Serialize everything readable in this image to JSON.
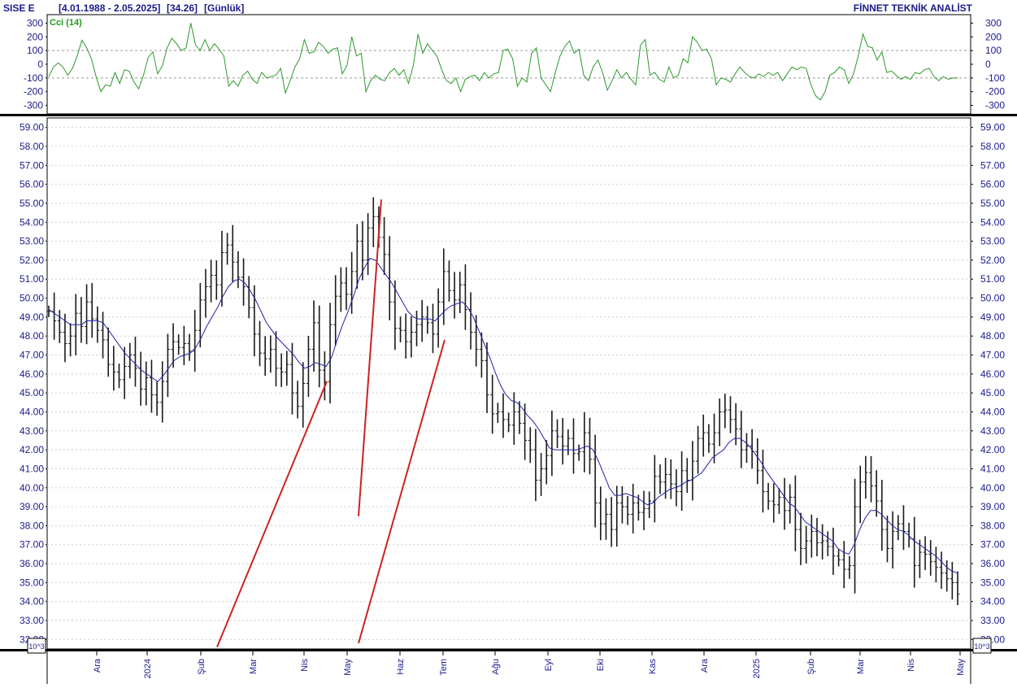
{
  "header": {
    "symbol": "SISE  E",
    "range": "[4.01.1988 - 2.05.2025]",
    "last": "[34.26]",
    "period": "[Günlük]",
    "brand": "FİNNET TEKNİK ANALİST"
  },
  "chart_data": [
    {
      "type": "line",
      "panel": "indicator",
      "indicator_label": "Cci (14)",
      "yticks": [
        "300",
        "200",
        "100",
        "0",
        "-100",
        "-200",
        "-300"
      ],
      "ylim": [
        -350,
        350
      ],
      "reference_lines": [
        100,
        -100
      ],
      "series": [
        {
          "color": "#2a9a2a",
          "values": [
            -90,
            -20,
            10,
            -20,
            -80,
            -30,
            60,
            175,
            120,
            40,
            -90,
            -200,
            -150,
            -160,
            -60,
            -140,
            -40,
            -50,
            -130,
            -180,
            -80,
            50,
            90,
            -70,
            -10,
            120,
            190,
            150,
            100,
            120,
            300,
            140,
            100,
            180,
            100,
            150,
            110,
            60,
            -160,
            -120,
            -160,
            -80,
            -50,
            -110,
            -140,
            -60,
            -100,
            -90,
            -80,
            -30,
            -210,
            -120,
            -20,
            40,
            180,
            80,
            90,
            160,
            130,
            80,
            110,
            120,
            -70,
            -10,
            200,
            60,
            80,
            -200,
            -120,
            -80,
            -110,
            -120,
            -60,
            -30,
            -80,
            -40,
            -140,
            -10,
            220,
            80,
            150,
            100,
            60,
            -40,
            -120,
            -140,
            -100,
            -200,
            -110,
            -90,
            -80,
            -120,
            -60,
            -100,
            -70,
            -60,
            100,
            110,
            40,
            -160,
            -100,
            -130,
            80,
            120,
            -100,
            -150,
            -200,
            -60,
            60,
            130,
            170,
            80,
            110,
            -80,
            -120,
            -20,
            30,
            -60,
            -190,
            -120,
            -40,
            -100,
            -60,
            -110,
            -150,
            140,
            180,
            -80,
            -60,
            -110,
            -130,
            -20,
            -100,
            -80,
            40,
            10,
            200,
            160,
            100,
            110,
            40,
            -150,
            -100,
            -110,
            -130,
            -70,
            -20,
            -60,
            -90,
            -100,
            -70,
            -90,
            -60,
            -80,
            -60,
            -120,
            -70,
            -20,
            -40,
            -20,
            -30,
            -150,
            -230,
            -260,
            -200,
            -80,
            -60,
            -20,
            -40,
            -140,
            -70,
            60,
            220,
            130,
            120,
            30,
            90,
            -60,
            -50,
            -80,
            -110,
            -90,
            -110,
            -60,
            -70,
            -40,
            -30,
            -90,
            -120,
            -90,
            -110,
            -100,
            -100
          ]
        }
      ]
    },
    {
      "type": "line",
      "panel": "price",
      "yticks": [
        "59.00",
        "58.00",
        "57.00",
        "56.00",
        "55.00",
        "54.00",
        "53.00",
        "52.00",
        "51.00",
        "50.00",
        "49.00",
        "48.00",
        "47.00",
        "46.00",
        "45.00",
        "44.00",
        "43.00",
        "42.00",
        "41.00",
        "40.00",
        "39.00",
        "38.00",
        "37.00",
        "36.00",
        "35.00",
        "34.00",
        "33.00",
        "32.00"
      ],
      "ylim": [
        31.5,
        59.5
      ],
      "x_categories": [
        "Ara",
        "2024",
        "Şub",
        "Mar",
        "Nis",
        "May",
        "Haz",
        "Tem",
        "Ağu",
        "Eyl",
        "Eki",
        "Kas",
        "Ara",
        "2025",
        "Şub",
        "Mar",
        "Nis",
        "May"
      ],
      "ohlc_series": [
        49.3,
        48.8,
        48.2,
        47.6,
        48.0,
        49.2,
        48.5,
        49.8,
        48.9,
        48.3,
        47.8,
        46.5,
        46.1,
        45.7,
        46.4,
        47.0,
        46.3,
        45.2,
        45.8,
        44.9,
        44.5,
        45.6,
        47.3,
        47.7,
        47.4,
        47.6,
        47.2,
        48.3,
        49.9,
        50.6,
        51.2,
        50.7,
        52.4,
        52.8,
        51.9,
        51.1,
        50.6,
        49.5,
        48.1,
        47.1,
        46.8,
        47.3,
        46.3,
        46.1,
        46.5,
        45.0,
        44.3,
        45.5,
        47.3,
        48.7,
        46.2,
        45.6,
        48.6,
        50.1,
        50.8,
        50.2,
        51.4,
        53.0,
        52.0,
        53.7,
        54.3,
        53.2,
        52.3,
        49.8,
        48.4,
        48.3,
        47.7,
        48.2,
        48.6,
        49.0,
        48.7,
        48.1,
        49.8,
        51.4,
        50.4,
        49.9,
        50.7,
        49.4,
        48.2,
        47.3,
        46.7,
        44.9,
        43.9,
        44.0,
        43.6,
        43.3,
        44.0,
        43.4,
        42.5,
        42.0,
        40.4,
        41.0,
        41.7,
        43.0,
        42.7,
        42.2,
        42.6,
        41.8,
        41.9,
        42.9,
        41.5,
        39.2,
        38.1,
        38.6,
        37.8,
        39.2,
        39.0,
        38.6,
        39.2,
        38.7,
        38.9,
        39.3,
        40.6,
        40.3,
        40.7,
        40.2,
        39.8,
        40.9,
        40.4,
        41.4,
        42.6,
        42.9,
        42.3,
        42.9,
        44.0,
        44.1,
        43.6,
        43.1,
        42.0,
        42.2,
        41.9,
        40.9,
        39.8,
        39.3,
        39.1,
        39.5,
        38.8,
        39.5,
        37.8,
        36.8,
        37.2,
        37.7,
        37.1,
        37.2,
        36.9,
        36.4,
        36.2,
        35.7,
        35.9,
        39.0,
        40.3,
        40.8,
        40.1,
        39.3,
        37.8,
        36.8,
        37.7,
        38.1,
        37.7,
        37.3,
        35.9,
        36.6,
        36.5,
        36.1,
        35.8,
        35.5,
        35.2,
        35.0,
        34.4
      ],
      "ma_series": [
        49.4,
        49.2,
        49.0,
        48.8,
        48.6,
        48.6,
        48.6,
        48.8,
        48.8,
        48.8,
        48.7,
        48.3,
        47.9,
        47.5,
        47.1,
        46.8,
        46.5,
        46.2,
        46.0,
        45.8,
        45.6,
        45.9,
        46.3,
        46.7,
        46.9,
        47.0,
        47.1,
        47.4,
        47.9,
        48.5,
        49.0,
        49.5,
        50.1,
        50.6,
        50.9,
        51.0,
        50.8,
        50.4,
        49.9,
        49.3,
        48.7,
        48.3,
        47.9,
        47.6,
        47.3,
        47.0,
        46.6,
        46.3,
        46.4,
        46.6,
        46.5,
        46.4,
        46.9,
        47.8,
        48.6,
        49.3,
        50.1,
        51.0,
        51.6,
        52.1,
        52.0,
        51.6,
        51.2,
        50.8,
        50.3,
        49.8,
        49.3,
        49.0,
        48.9,
        48.9,
        48.9,
        48.8,
        49.1,
        49.4,
        49.6,
        49.7,
        49.8,
        49.5,
        49.0,
        48.3,
        47.6,
        46.9,
        46.1,
        45.4,
        44.9,
        44.6,
        44.5,
        44.2,
        43.8,
        43.5,
        43.1,
        42.6,
        42.1,
        42.0,
        42.0,
        42.0,
        42.0,
        42.0,
        42.1,
        42.2,
        42.0,
        41.4,
        40.7,
        40.0,
        39.6,
        39.6,
        39.7,
        39.6,
        39.5,
        39.3,
        39.1,
        39.2,
        39.5,
        39.7,
        39.9,
        40.0,
        40.1,
        40.3,
        40.4,
        40.6,
        40.8,
        41.2,
        41.6,
        41.8,
        42.0,
        42.4,
        42.6,
        42.6,
        42.4,
        42.1,
        41.7,
        41.3,
        40.8,
        40.4,
        40.0,
        39.6,
        39.2,
        39.0,
        38.6,
        38.2,
        38.0,
        37.8,
        37.6,
        37.4,
        37.2,
        36.8,
        36.6,
        36.5,
        37.0,
        37.8,
        38.4,
        38.8,
        38.8,
        38.6,
        38.3,
        38.0,
        37.8,
        37.7,
        37.5,
        37.2,
        37.0,
        36.8,
        36.6,
        36.4,
        36.1,
        35.8,
        35.6,
        35.5
      ],
      "channel_lines": [
        {
          "color": "#cc2222",
          "from": {
            "x": "Haz",
            "y": 55.2
          },
          "to": {
            "x": "May",
            "y": 38.5
          }
        },
        {
          "color": "#cc2222",
          "from": {
            "x": "Tem",
            "y": 47.8
          },
          "to": {
            "x": "May",
            "y": 31.8
          }
        },
        {
          "color": "#cc2222",
          "from": {
            "x": "Nis",
            "y": 45.6
          },
          "to": {
            "x": "Şub",
            "y": 31.6
          }
        }
      ],
      "colors": {
        "bars": "#1a1a1a",
        "ma": "#2222aa",
        "channel": "#cc2222"
      }
    }
  ],
  "scale_badge": "10^3"
}
